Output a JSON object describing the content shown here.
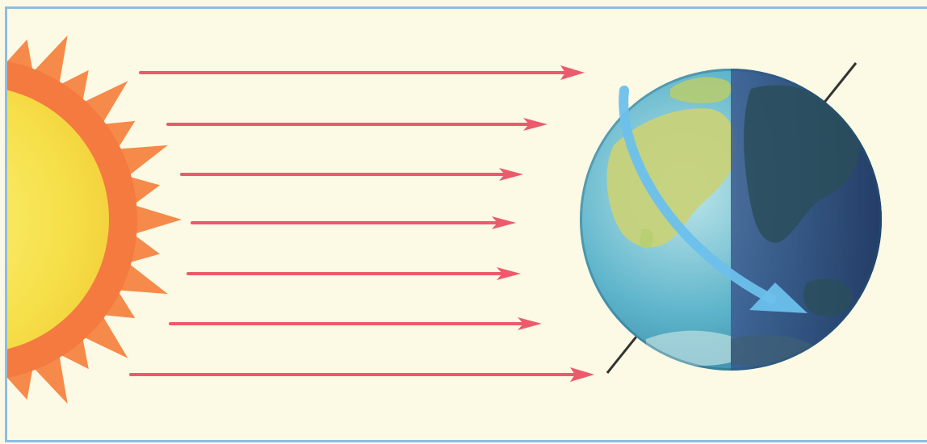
{
  "diagram": {
    "elements": {
      "sun": "sun",
      "rays": "sun-rays",
      "earth": "earth",
      "axis": "earth-axis",
      "rotation_arrow": "rotation-arrow"
    },
    "ray_count": 7,
    "colors": {
      "background": "#fcf9e4",
      "frame": "#8fbde0",
      "sun_core": "#f7e54e",
      "sun_corona": "#f58a4a",
      "ray": "#ec5a6c",
      "ocean_day": "#4fb0c9",
      "land_day": "#c9d37a",
      "night_side": "#2e4a78",
      "rotation_arrow": "#6cc0ec",
      "axis": "#333333"
    }
  }
}
